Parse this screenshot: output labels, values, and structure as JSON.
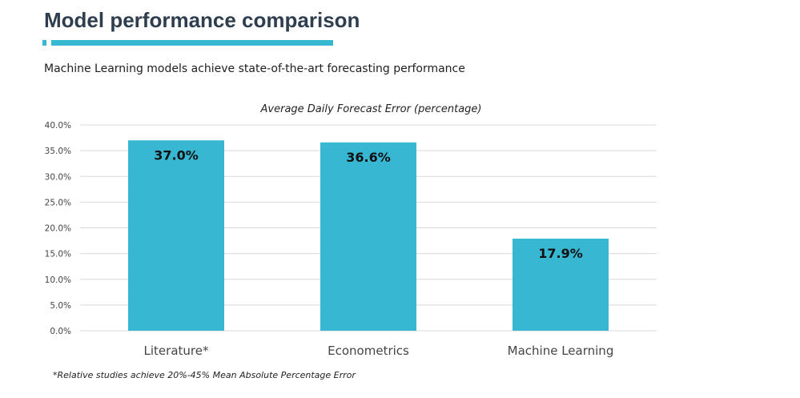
{
  "header": {
    "title": "Model performance comparison",
    "subtitle": "Machine Learning models achieve state-of-the-art forecasting performance"
  },
  "colors": {
    "accent": "#38b7d3",
    "bar": "#38b7d3",
    "title": "#2f3e4e",
    "grid": "#d9d9d9"
  },
  "chart_data": {
    "type": "bar",
    "title": "Average Daily Forecast Error (percentage)",
    "categories": [
      "Literature*",
      "Econometrics",
      "Machine Learning"
    ],
    "values": [
      37.0,
      36.6,
      17.9
    ],
    "data_labels": [
      "37.0%",
      "36.6%",
      "17.9%"
    ],
    "ylim": [
      0,
      40
    ],
    "yticks": [
      0,
      5,
      10,
      15,
      20,
      25,
      30,
      35,
      40
    ],
    "ytick_labels": [
      "0.0%",
      "5.0%",
      "10.0%",
      "15.0%",
      "20.0%",
      "25.0%",
      "30.0%",
      "35.0%",
      "40.0%"
    ],
    "grid": true,
    "legend": "none",
    "xlabel": "",
    "ylabel": ""
  },
  "footnote": "*Relative studies achieve 20%-45% Mean Absolute Percentage Error"
}
